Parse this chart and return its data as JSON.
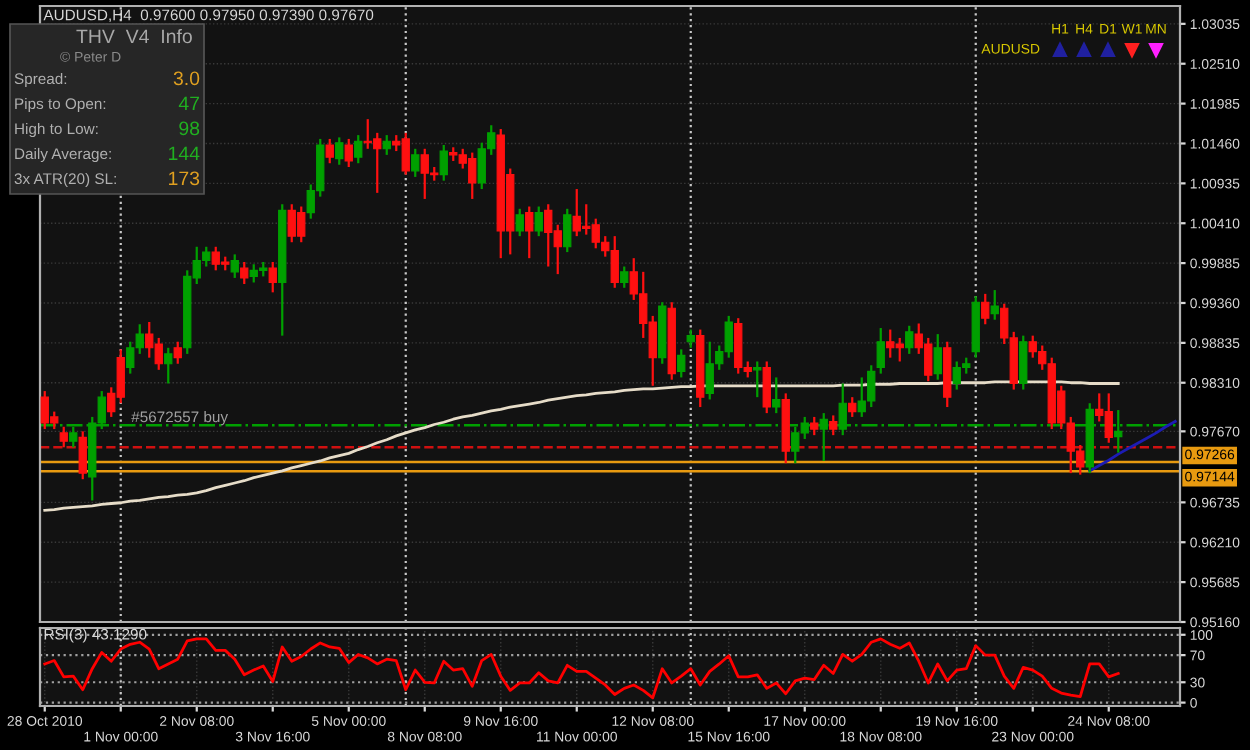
{
  "chart_data": [
    {
      "type": "candlestick",
      "title": "AUDUSD,H4  0.97600 0.97950 0.97390 0.97670",
      "categories": [
        null,
        null,
        null,
        null,
        null,
        null,
        null,
        null,
        null,
        null,
        null,
        null,
        null,
        null,
        null,
        null,
        null,
        null,
        null,
        null,
        null,
        null,
        null,
        null,
        null,
        null,
        null,
        null,
        null,
        null,
        null,
        null,
        null,
        null,
        null,
        null,
        null,
        null,
        null,
        null,
        null,
        null,
        null,
        null,
        null,
        null,
        null,
        null,
        null,
        null,
        null,
        null,
        null,
        null,
        null,
        null,
        null,
        null,
        null,
        null,
        null,
        null,
        null,
        null,
        null,
        null,
        null,
        null,
        null,
        null,
        null,
        null,
        null,
        null,
        null,
        null,
        null,
        null,
        null,
        null,
        null,
        null,
        null,
        null,
        null,
        null,
        null,
        null,
        null,
        null,
        null,
        null,
        null,
        null,
        null,
        null,
        null,
        null,
        null,
        null,
        null,
        null,
        null,
        null,
        null,
        null,
        null,
        null,
        null,
        null,
        null,
        null,
        null,
        null,
        null,
        null,
        null,
        null,
        null,
        null
      ],
      "ohlc": [
        [
          0.9812,
          0.982,
          0.977,
          0.9778
        ],
        [
          0.9786,
          0.9793,
          0.977,
          0.9778
        ],
        [
          0.9765,
          0.9773,
          0.9746,
          0.9754
        ],
        [
          0.9754,
          0.9773,
          0.9746,
          0.9765
        ],
        [
          0.9759,
          0.9767,
          0.9704,
          0.9712
        ],
        [
          0.9707,
          0.9786,
          0.9676,
          0.9778
        ],
        [
          0.9778,
          0.982,
          0.977,
          0.9812
        ],
        [
          0.9817,
          0.9825,
          0.9786,
          0.9793
        ],
        [
          0.9864,
          0.9875,
          0.9804,
          0.9812
        ],
        [
          0.9851,
          0.9885,
          0.9843,
          0.9877
        ],
        [
          0.9877,
          0.9908,
          0.9869,
          0.9895
        ],
        [
          0.9895,
          0.9911,
          0.9864,
          0.9877
        ],
        [
          0.9882,
          0.989,
          0.9848,
          0.9856
        ],
        [
          0.9856,
          0.9877,
          0.983,
          0.9869
        ],
        [
          0.9877,
          0.9885,
          0.9856,
          0.9864
        ],
        [
          0.9877,
          0.9979,
          0.9869,
          0.9971
        ],
        [
          0.9969,
          1.001,
          0.9961,
          0.9992
        ],
        [
          0.9992,
          1.001,
          0.9984,
          1.0003
        ],
        [
          1.0003,
          1.001,
          0.9979,
          0.9987
        ],
        [
          0.999,
          0.9997,
          0.9979,
          0.9987
        ],
        [
          0.9977,
          1.0,
          0.9969,
          0.9992
        ],
        [
          0.9982,
          0.999,
          0.9961,
          0.9969
        ],
        [
          0.9971,
          0.9987,
          0.9963,
          0.9979
        ],
        [
          0.9979,
          0.999,
          0.9971,
          0.9982
        ],
        [
          0.9982,
          0.999,
          0.995,
          0.9963
        ],
        [
          0.9963,
          1.0066,
          0.9893,
          1.0058
        ],
        [
          1.0058,
          1.0066,
          1.0016,
          1.0024
        ],
        [
          1.0055,
          1.0063,
          1.0016,
          1.0024
        ],
        [
          1.0055,
          1.0092,
          1.0047,
          1.0084
        ],
        [
          1.0084,
          1.0152,
          1.0076,
          1.0144
        ],
        [
          1.0144,
          1.0152,
          1.012,
          1.0128
        ],
        [
          1.0126,
          1.0154,
          1.0118,
          1.0147
        ],
        [
          1.0144,
          1.0152,
          1.0115,
          1.0123
        ],
        [
          1.0128,
          1.0157,
          1.012,
          1.0149
        ],
        [
          1.0149,
          1.0178,
          1.0139,
          1.0147
        ],
        [
          1.0152,
          1.016,
          1.0081,
          1.0139
        ],
        [
          1.0139,
          1.0157,
          1.0131,
          1.0149
        ],
        [
          1.0149,
          1.0157,
          1.0136,
          1.0144
        ],
        [
          1.0152,
          1.016,
          1.0105,
          1.011
        ],
        [
          1.011,
          1.0139,
          1.0102,
          1.0131
        ],
        [
          1.0131,
          1.0139,
          1.0073,
          1.0107
        ],
        [
          1.0107,
          1.0115,
          1.0097,
          1.0105
        ],
        [
          1.0105,
          1.0144,
          1.0097,
          1.0136
        ],
        [
          1.0134,
          1.0141,
          1.0123,
          1.0131
        ],
        [
          1.0131,
          1.0139,
          1.0113,
          1.012
        ],
        [
          1.0126,
          1.0134,
          1.0073,
          1.0094
        ],
        [
          1.0094,
          1.0147,
          1.0086,
          1.0139
        ],
        [
          1.0139,
          1.017,
          1.0131,
          1.016
        ],
        [
          1.0157,
          1.0165,
          0.9995,
          1.0031
        ],
        [
          1.0105,
          1.0113,
          1.0,
          1.0031
        ],
        [
          1.0031,
          1.006,
          1.0024,
          1.0052
        ],
        [
          1.0055,
          1.0063,
          0.9995,
          1.0031
        ],
        [
          1.0031,
          1.0063,
          1.0024,
          1.0055
        ],
        [
          1.0058,
          1.0066,
          0.9984,
          1.0029
        ],
        [
          1.0031,
          1.0039,
          0.9974,
          1.001
        ],
        [
          1.001,
          1.006,
          1.0003,
          1.0052
        ],
        [
          1.005,
          1.0086,
          1.0024,
          1.0031
        ],
        [
          1.0037,
          1.0066,
          1.0026,
          1.0034
        ],
        [
          1.0039,
          1.0047,
          1.0008,
          1.0016
        ],
        [
          1.0016,
          1.0024,
          0.9997,
          1.0005
        ],
        [
          1.0005,
          1.0024,
          0.9956,
          0.9963
        ],
        [
          0.9963,
          0.9984,
          0.9956,
          0.9977
        ],
        [
          0.9977,
          0.9995,
          0.994,
          0.9948
        ],
        [
          0.9948,
          0.9977,
          0.989,
          0.9909
        ],
        [
          0.9911,
          0.9919,
          0.9827,
          0.9864
        ],
        [
          0.9864,
          0.9937,
          0.9856,
          0.9932
        ],
        [
          0.9929,
          0.9937,
          0.9835,
          0.9843
        ],
        [
          0.9846,
          0.9875,
          0.9838,
          0.9867
        ],
        [
          0.9885,
          0.9901,
          0.9877,
          0.9893
        ],
        [
          0.9893,
          0.9901,
          0.9799,
          0.9812
        ],
        [
          0.9817,
          0.9885,
          0.9809,
          0.9856
        ],
        [
          0.9856,
          0.988,
          0.9848,
          0.9872
        ],
        [
          0.9872,
          0.9919,
          0.9864,
          0.9911
        ],
        [
          0.9909,
          0.9916,
          0.9843,
          0.9851
        ],
        [
          0.9851,
          0.9859,
          0.9838,
          0.9846
        ],
        [
          0.9848,
          0.9859,
          0.9812,
          0.9851
        ],
        [
          0.9851,
          0.9859,
          0.9791,
          0.9799
        ],
        [
          0.9799,
          0.9838,
          0.9791,
          0.9809
        ],
        [
          0.9809,
          0.9817,
          0.9725,
          0.9741
        ],
        [
          0.9741,
          0.9773,
          0.9725,
          0.9765
        ],
        [
          0.9765,
          0.9786,
          0.9757,
          0.9778
        ],
        [
          0.9778,
          0.9786,
          0.9762,
          0.977
        ],
        [
          0.977,
          0.9791,
          0.9728,
          0.9783
        ],
        [
          0.978,
          0.9788,
          0.9762,
          0.977
        ],
        [
          0.977,
          0.983,
          0.9762,
          0.9804
        ],
        [
          0.9804,
          0.9812,
          0.9786,
          0.9793
        ],
        [
          0.9793,
          0.9838,
          0.9786,
          0.9807
        ],
        [
          0.9807,
          0.9854,
          0.9799,
          0.9846
        ],
        [
          0.9851,
          0.9903,
          0.9843,
          0.9885
        ],
        [
          0.9885,
          0.9901,
          0.9864,
          0.9877
        ],
        [
          0.9882,
          0.989,
          0.9859,
          0.9877
        ],
        [
          0.9877,
          0.9906,
          0.9869,
          0.9898
        ],
        [
          0.9895,
          0.9909,
          0.9869,
          0.9877
        ],
        [
          0.9882,
          0.989,
          0.9833,
          0.9841
        ],
        [
          0.9843,
          0.9895,
          0.9835,
          0.9877
        ],
        [
          0.9877,
          0.9885,
          0.9799,
          0.9812
        ],
        [
          0.983,
          0.9859,
          0.9822,
          0.9851
        ],
        [
          0.9851,
          0.9864,
          0.9843,
          0.9856
        ],
        [
          0.9872,
          0.9945,
          0.9864,
          0.9937
        ],
        [
          0.9937,
          0.9948,
          0.9908,
          0.9916
        ],
        [
          0.9922,
          0.9953,
          0.9914,
          0.9932
        ],
        [
          0.9929,
          0.9935,
          0.9882,
          0.989
        ],
        [
          0.989,
          0.9898,
          0.9822,
          0.983
        ],
        [
          0.983,
          0.9893,
          0.9822,
          0.9885
        ],
        [
          0.9885,
          0.9893,
          0.9864,
          0.9872
        ],
        [
          0.9872,
          0.988,
          0.9848,
          0.9856
        ],
        [
          0.9856,
          0.9864,
          0.977,
          0.9778
        ],
        [
          0.982,
          0.9827,
          0.977,
          0.9778
        ],
        [
          0.9778,
          0.9786,
          0.9712,
          0.9741
        ],
        [
          0.9741,
          0.9749,
          0.971,
          0.972
        ],
        [
          0.972,
          0.9804,
          0.9712,
          0.9796
        ],
        [
          0.9796,
          0.9817,
          0.978,
          0.9788
        ],
        [
          0.9793,
          0.9817,
          0.9752,
          0.9759
        ],
        [
          0.976,
          0.9795,
          0.9739,
          0.9767
        ],
        null,
        null,
        null,
        null,
        null,
        null
      ],
      "series": [
        {
          "type": "line",
          "color": "#e6dcc8",
          "values": [
            0.9663,
            0.9664,
            0.9666,
            0.9667,
            0.9668,
            0.9669,
            0.9671,
            0.9672,
            0.9673,
            0.9675,
            0.9676,
            0.9678,
            0.968,
            0.9681,
            0.9683,
            0.9684,
            0.9686,
            0.9689,
            0.9693,
            0.9696,
            0.9699,
            0.9702,
            0.9706,
            0.9709,
            0.9712,
            0.9715,
            0.9719,
            0.9722,
            0.9725,
            0.9728,
            0.9732,
            0.9735,
            0.9738,
            0.9743,
            0.9747,
            0.9752,
            0.9756,
            0.9761,
            0.9765,
            0.9769,
            0.9772,
            0.9776,
            0.9779,
            0.9783,
            0.9786,
            0.9788,
            0.9791,
            0.9794,
            0.9796,
            0.9799,
            0.9801,
            0.9803,
            0.9805,
            0.9808,
            0.981,
            0.9812,
            0.9814,
            0.9815,
            0.9817,
            0.9818,
            0.9819,
            0.9821,
            0.9822,
            0.9823,
            0.9823,
            0.9824,
            0.9825,
            0.9826,
            0.9826,
            0.9827,
            0.9827,
            0.9827,
            0.9827,
            0.9827,
            0.9827,
            0.9827,
            0.9827,
            0.9827,
            0.9827,
            0.9827,
            0.9827,
            0.9827,
            0.9827,
            0.9827,
            0.9828,
            0.9828,
            0.9828,
            0.9829,
            0.9829,
            0.9829,
            0.983,
            0.983,
            0.983,
            0.983,
            0.983,
            0.9831,
            0.9831,
            0.9831,
            0.9831,
            0.9831,
            0.9832,
            0.9832,
            0.9832,
            0.9832,
            0.9832,
            0.9832,
            0.9832,
            0.9832,
            0.9831,
            0.9831,
            0.983,
            0.983,
            0.983,
            0.983,
            null,
            null,
            null,
            null,
            null,
            null
          ]
        },
        {
          "type": "line",
          "color": "#1c1cb4",
          "values": [
            null,
            null,
            null,
            null,
            null,
            null,
            null,
            null,
            null,
            null,
            null,
            null,
            null,
            null,
            null,
            null,
            null,
            null,
            null,
            null,
            null,
            null,
            null,
            null,
            null,
            null,
            null,
            null,
            null,
            null,
            null,
            null,
            null,
            null,
            null,
            null,
            null,
            null,
            null,
            null,
            null,
            null,
            null,
            null,
            null,
            null,
            null,
            null,
            null,
            null,
            null,
            null,
            null,
            null,
            null,
            null,
            null,
            null,
            null,
            null,
            null,
            null,
            null,
            null,
            null,
            null,
            null,
            null,
            null,
            null,
            null,
            null,
            null,
            null,
            null,
            null,
            null,
            null,
            null,
            null,
            null,
            null,
            null,
            null,
            null,
            null,
            null,
            null,
            null,
            null,
            null,
            null,
            null,
            null,
            null,
            null,
            null,
            null,
            null,
            null,
            null,
            null,
            null,
            null,
            null,
            null,
            null,
            null,
            null,
            null,
            0.9715,
            0.9722,
            0.9729,
            0.9737,
            0.9744,
            0.9751,
            0.9758,
            0.9765,
            0.9773,
            0.978
          ]
        }
      ],
      "ylim": [
        0.9516,
        1.0327
      ],
      "yticks": [
        1.03035,
        {
          "value": 1.0251,
          "label": "1.02510"
        },
        1.01985,
        {
          "value": 1.0146,
          "label": "1.01460"
        },
        1.00935,
        {
          "value": 1.0041,
          "label": "1.00410"
        },
        0.99885,
        {
          "value": 0.9936,
          "label": "0.99360"
        },
        0.98835,
        {
          "value": 0.9831,
          "label": "0.98310"
        },
        {
          "value": 0.9767,
          "label": "0.97670"
        },
        0.96735,
        {
          "value": 0.9621,
          "label": "0.96210"
        },
        0.95685,
        {
          "value": 0.9516,
          "label": "0.95160"
        }
      ],
      "tick_labels": "y",
      "grid": true,
      "ref_lines": [
        {
          "axis": "y",
          "value": 0.9775,
          "color": "#00a000",
          "line_style": "dashdot"
        },
        {
          "axis": "y",
          "value": 0.9746,
          "color": "#d01010",
          "line_style": "dashed"
        },
        {
          "axis": "y",
          "value": 0.97266,
          "label": "0.97266",
          "color": "#e89a10",
          "line_style": "solid"
        },
        {
          "axis": "y",
          "value": 0.97144,
          "label": "0.97144",
          "color": "#e89a10",
          "line_style": "solid"
        }
      ],
      "annotations": [
        {
          "text": "#5672557 buy",
          "y": 0.9775
        },
        "THV  V4  Info",
        "© Peter D",
        "Spread:",
        "3.0",
        "Pips to Open:",
        "47",
        "High to Low:",
        "98",
        "Daily Average:",
        "144",
        "3x ATR(20) SL:",
        "173",
        "H1",
        "H4",
        "D1",
        "W1",
        "MN",
        "AUDUSD"
      ]
    },
    {
      "type": "line",
      "title": "RSI(3) 43.1290",
      "color": "#ff0000",
      "categories": [
        "28 Oct 2010",
        null,
        null,
        null,
        null,
        null,
        null,
        null,
        "1 Nov 00:00",
        null,
        null,
        null,
        null,
        null,
        null,
        null,
        "2 Nov 08:00",
        null,
        null,
        null,
        null,
        null,
        null,
        null,
        "3 Nov 16:00",
        null,
        null,
        null,
        null,
        null,
        null,
        null,
        "5 Nov 00:00",
        null,
        null,
        null,
        null,
        null,
        null,
        null,
        "8 Nov 08:00",
        null,
        null,
        null,
        null,
        null,
        null,
        null,
        "9 Nov 16:00",
        null,
        null,
        null,
        null,
        null,
        null,
        null,
        "11 Nov 00:00",
        null,
        null,
        null,
        null,
        null,
        null,
        null,
        "12 Nov 08:00",
        null,
        null,
        null,
        null,
        null,
        null,
        null,
        "15 Nov 16:00",
        null,
        null,
        null,
        null,
        null,
        null,
        null,
        "17 Nov 00:00",
        null,
        null,
        null,
        null,
        null,
        null,
        null,
        "18 Nov 08:00",
        null,
        null,
        null,
        null,
        null,
        null,
        null,
        "19 Nov 16:00",
        null,
        null,
        null,
        null,
        null,
        null,
        null,
        "23 Nov 00:00",
        null,
        null,
        null,
        null,
        null,
        null,
        null,
        "24 Nov 08:00",
        null,
        null,
        null,
        null,
        null,
        null,
        null
      ],
      "values": [
        57,
        62,
        38,
        39,
        19,
        50,
        74,
        61,
        79,
        86,
        89,
        79,
        50,
        57,
        64,
        91,
        94,
        94,
        77,
        77,
        64,
        41,
        48,
        54,
        31,
        82,
        61,
        68,
        79,
        88,
        82,
        80,
        59,
        71,
        66,
        57,
        64,
        62,
        19,
        48,
        30,
        29,
        61,
        48,
        50,
        24,
        62,
        71,
        39,
        18,
        29,
        29,
        44,
        32,
        29,
        55,
        46,
        46,
        36,
        26,
        12,
        21,
        26,
        18,
        7,
        50,
        29,
        39,
        50,
        26,
        46,
        57,
        69,
        38,
        38,
        41,
        21,
        29,
        13,
        32,
        36,
        34,
        55,
        43,
        71,
        61,
        71,
        89,
        94,
        86,
        80,
        88,
        61,
        29,
        57,
        32,
        48,
        50,
        84,
        70,
        70,
        39,
        21,
        52,
        48,
        39,
        21,
        14,
        11,
        9,
        57,
        57,
        38,
        43,
        null,
        null,
        null,
        null,
        null,
        null
      ],
      "ylim": [
        -5,
        110
      ],
      "yticks": [
        0,
        30,
        70,
        100
      ],
      "grid": true
    }
  ]
}
